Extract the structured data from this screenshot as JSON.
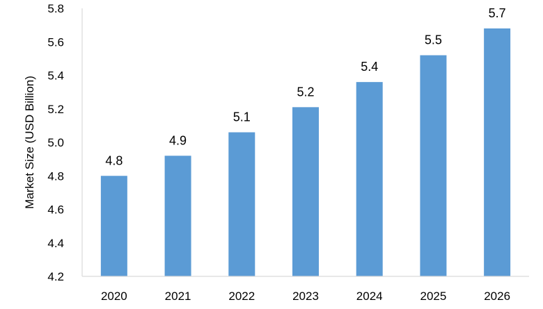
{
  "chart_data": {
    "type": "bar",
    "categories": [
      "2020",
      "2021",
      "2022",
      "2023",
      "2024",
      "2025",
      "2026"
    ],
    "values": [
      4.8,
      4.92,
      5.06,
      5.21,
      5.36,
      5.52,
      5.68
    ],
    "data_labels": [
      "4.8",
      "4.9",
      "5.1",
      "5.2",
      "5.4",
      "5.5",
      "5.7"
    ],
    "title": "",
    "xlabel": "",
    "ylabel": "Market Size (USD Billion)",
    "ylim": [
      4.2,
      5.8
    ],
    "yticks": [
      4.2,
      4.4,
      4.6,
      4.8,
      5.0,
      5.2,
      5.4,
      5.6,
      5.8
    ],
    "ytick_labels": [
      "4.2",
      "4.4",
      "4.6",
      "4.8",
      "5.0",
      "5.2",
      "5.4",
      "5.6",
      "5.8"
    ],
    "grid": false,
    "legend": "none",
    "bar_color": "#5b9bd5",
    "axis_color": "#d9d9d9"
  }
}
